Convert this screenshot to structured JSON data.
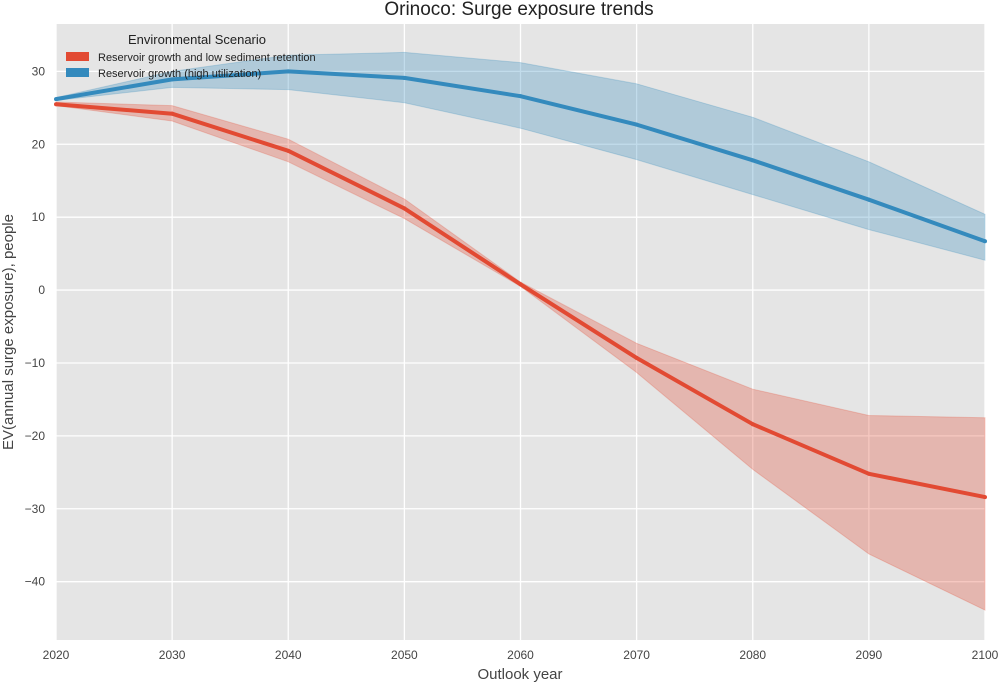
{
  "chart_data": {
    "type": "line",
    "title": "Orinoco: Surge exposure trends",
    "xlabel": "Outlook year",
    "ylabel": "EV(annual surge exposure), people",
    "x": [
      2020,
      2030,
      2040,
      2050,
      2060,
      2070,
      2080,
      2090,
      2100
    ],
    "xlim": [
      2020,
      2100
    ],
    "ylim": [
      -48,
      36.5
    ],
    "xticks": [
      2020,
      2030,
      2040,
      2050,
      2060,
      2070,
      2080,
      2090,
      2100
    ],
    "yticks": [
      -40,
      -30,
      -20,
      -10,
      0,
      10,
      20,
      30
    ],
    "grid": true,
    "legend": {
      "title": "Environmental Scenario",
      "placement": "top-left"
    },
    "series": [
      {
        "name": "Reservoir growth and low sediment retention",
        "color": "#e24a33",
        "values": [
          25.5,
          24.2,
          19.1,
          11.2,
          0.8,
          -9.3,
          -18.4,
          -25.2,
          -28.4
        ],
        "lower": [
          25.3,
          23.2,
          17.6,
          9.8,
          0.5,
          -11.3,
          -24.6,
          -36.2,
          -43.9
        ],
        "upper": [
          25.8,
          25.3,
          20.7,
          12.5,
          1.1,
          -7.3,
          -13.6,
          -17.2,
          -17.5
        ]
      },
      {
        "name": "Reservoir growth (high utilization)",
        "color": "#348abd",
        "values": [
          26.2,
          28.9,
          30.0,
          29.1,
          26.6,
          22.7,
          17.8,
          12.4,
          6.7
        ],
        "lower": [
          26.0,
          27.8,
          27.5,
          25.7,
          22.2,
          17.9,
          13.1,
          8.3,
          4.1
        ],
        "upper": [
          26.4,
          30.0,
          32.2,
          32.6,
          31.2,
          28.3,
          23.7,
          17.6,
          10.4
        ]
      }
    ]
  }
}
